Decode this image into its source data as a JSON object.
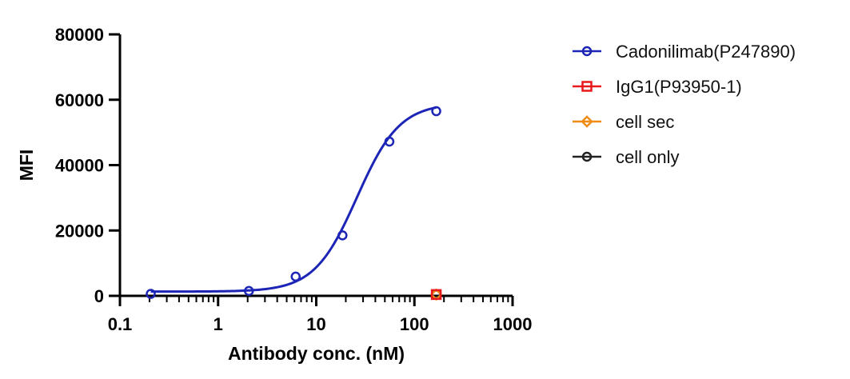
{
  "chart_data": {
    "type": "scatter",
    "xlabel": "Antibody conc. (nM)",
    "ylabel": "MFI",
    "x_scale": "log",
    "xlim": [
      0.1,
      1000
    ],
    "ylim": [
      0,
      80000
    ],
    "x_ticks": [
      0.1,
      1,
      10,
      100,
      1000
    ],
    "x_tick_labels": [
      "0.1",
      "1",
      "10",
      "100",
      "1000"
    ],
    "y_ticks": [
      0,
      20000,
      40000,
      60000,
      80000
    ],
    "y_tick_labels": [
      "0",
      "20000",
      "40000",
      "60000",
      "80000"
    ],
    "grid": false,
    "legend_position": "right",
    "series": [
      {
        "name": "Cadonilimab(P247890)",
        "color": "#1c25b5",
        "marker": "circle",
        "fit": "sigmoid",
        "x": [
          0.206,
          2.06,
          6.17,
          18.5,
          55.6,
          167
        ],
        "y": [
          600,
          1500,
          5900,
          18500,
          47200,
          56500
        ]
      },
      {
        "name": "IgG1(P93950-1)",
        "color": "#e8191b",
        "marker": "square",
        "fit": "none",
        "x": [
          167
        ],
        "y": [
          400
        ]
      },
      {
        "name": "cell sec",
        "color": "#f08c16",
        "marker": "diamond",
        "fit": "none",
        "x": [
          167
        ],
        "y": [
          400
        ]
      },
      {
        "name": "cell only",
        "color": "#222222",
        "marker": "circle",
        "fit": "none",
        "x": [
          167
        ],
        "y": [
          400
        ]
      }
    ],
    "fit_params": {
      "bottom": 1300,
      "top": 59000,
      "ec50": 26,
      "hill": 2
    }
  }
}
